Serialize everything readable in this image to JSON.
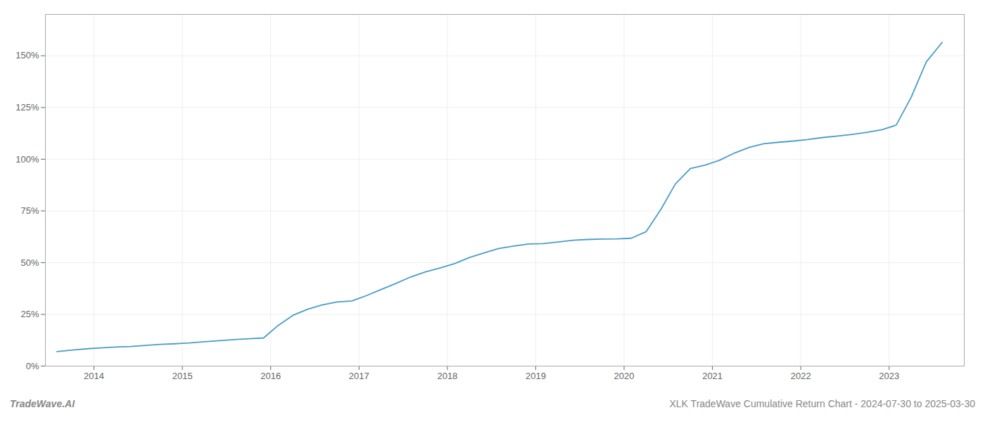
{
  "chart_data": {
    "type": "line",
    "x": [
      2013.58,
      2013.7,
      2013.83,
      2013.96,
      2014.08,
      2014.25,
      2014.42,
      2014.58,
      2014.75,
      2014.92,
      2015.08,
      2015.25,
      2015.42,
      2015.58,
      2015.75,
      2015.92,
      2016.08,
      2016.25,
      2016.42,
      2016.58,
      2016.75,
      2016.92,
      2017.08,
      2017.25,
      2017.42,
      2017.58,
      2017.75,
      2017.92,
      2018.08,
      2018.25,
      2018.42,
      2018.58,
      2018.75,
      2018.92,
      2019.08,
      2019.25,
      2019.42,
      2019.58,
      2019.75,
      2019.92,
      2020.08,
      2020.25,
      2020.42,
      2020.58,
      2020.75,
      2020.92,
      2021.08,
      2021.25,
      2021.42,
      2021.58,
      2021.75,
      2021.92,
      2022.08,
      2022.25,
      2022.42,
      2022.58,
      2022.75,
      2022.92,
      2023.08,
      2023.25,
      2023.42,
      2023.6
    ],
    "values": [
      0.07,
      0.075,
      0.08,
      0.085,
      0.088,
      0.092,
      0.095,
      0.1,
      0.105,
      0.108,
      0.112,
      0.118,
      0.123,
      0.128,
      0.132,
      0.136,
      0.195,
      0.245,
      0.275,
      0.295,
      0.31,
      0.315,
      0.34,
      0.37,
      0.4,
      0.43,
      0.455,
      0.475,
      0.495,
      0.525,
      0.548,
      0.568,
      0.58,
      0.59,
      0.592,
      0.6,
      0.608,
      0.612,
      0.614,
      0.615,
      0.618,
      0.65,
      0.76,
      0.88,
      0.955,
      0.972,
      0.995,
      1.03,
      1.058,
      1.075,
      1.082,
      1.088,
      1.095,
      1.105,
      1.112,
      1.12,
      1.13,
      1.143,
      1.165,
      1.3,
      1.47,
      1.565
    ],
    "color": "#4a9dc9",
    "xlim": [
      2013.45,
      2023.85
    ],
    "xticks": [
      2014,
      2015,
      2016,
      2017,
      2018,
      2019,
      2020,
      2021,
      2022,
      2023
    ],
    "ylim": [
      0.0,
      1.7
    ],
    "yticks": [
      {
        "value": 0.0,
        "label": "0%"
      },
      {
        "value": 0.25,
        "label": "25%"
      },
      {
        "value": 0.5,
        "label": "50%"
      },
      {
        "value": 0.75,
        "label": "75%"
      },
      {
        "value": 1.0,
        "label": "100%"
      },
      {
        "value": 1.25,
        "label": "125%"
      },
      {
        "value": 1.5,
        "label": "150%"
      }
    ],
    "grid": true,
    "annotations": [
      "TradeWave.AI",
      "XLK TradeWave Cumulative Return Chart - 2024-07-30 to 2025-03-30"
    ]
  }
}
